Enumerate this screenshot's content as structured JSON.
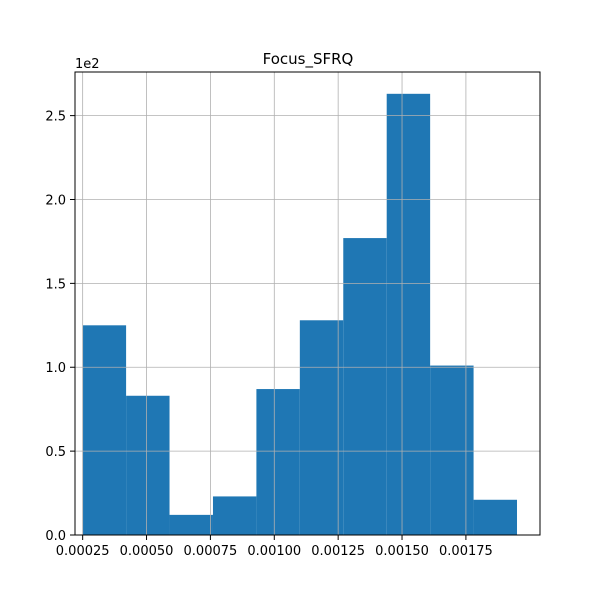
{
  "chart_data": {
    "type": "bar",
    "title": "Focus_SFRQ",
    "xlabel": "",
    "ylabel": "",
    "y_scale_label": "1e2",
    "grid": true,
    "bar_color": "#1f77b4",
    "bins": [
      {
        "x0": 0.00025,
        "x1": 0.00042,
        "value": 125
      },
      {
        "x0": 0.00042,
        "x1": 0.00059,
        "value": 83
      },
      {
        "x0": 0.00059,
        "x1": 0.00076,
        "value": 12
      },
      {
        "x0": 0.00076,
        "x1": 0.00093,
        "value": 23
      },
      {
        "x0": 0.00093,
        "x1": 0.0011,
        "value": 87
      },
      {
        "x0": 0.0011,
        "x1": 0.00127,
        "value": 128
      },
      {
        "x0": 0.00127,
        "x1": 0.00144,
        "value": 177
      },
      {
        "x0": 0.00144,
        "x1": 0.00161,
        "value": 263
      },
      {
        "x0": 0.00161,
        "x1": 0.00178,
        "value": 101
      },
      {
        "x0": 0.00178,
        "x1": 0.00195,
        "value": 21
      }
    ],
    "xlim": [
      0.00022,
      0.00204
    ],
    "ylim": [
      0,
      276
    ],
    "x_ticks": [
      {
        "value": 0.00025,
        "label": "0.00025"
      },
      {
        "value": 0.0005,
        "label": "0.00050"
      },
      {
        "value": 0.00075,
        "label": "0.00075"
      },
      {
        "value": 0.001,
        "label": "0.00100"
      },
      {
        "value": 0.00125,
        "label": "0.00125"
      },
      {
        "value": 0.0015,
        "label": "0.00150"
      },
      {
        "value": 0.00175,
        "label": "0.00175"
      }
    ],
    "y_ticks": [
      {
        "value": 0,
        "label": "0.0"
      },
      {
        "value": 50,
        "label": "0.5"
      },
      {
        "value": 100,
        "label": "1.0"
      },
      {
        "value": 150,
        "label": "1.5"
      },
      {
        "value": 200,
        "label": "2.0"
      },
      {
        "value": 250,
        "label": "2.5"
      }
    ]
  }
}
